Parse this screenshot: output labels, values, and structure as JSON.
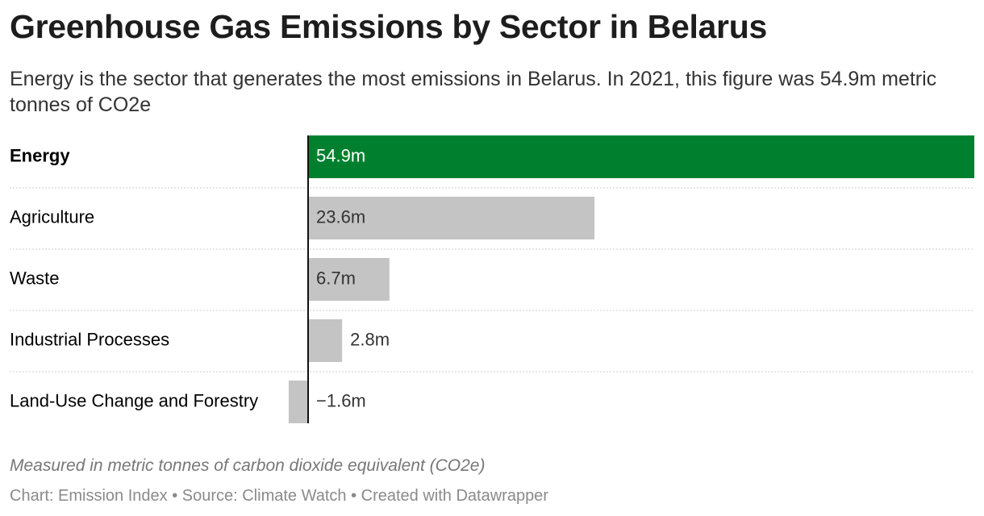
{
  "chart_data": {
    "type": "bar",
    "title": "Greenhouse Gas Emissions by Sector in Belarus",
    "subtitle": "Energy is the sector that generates the most emissions in Belarus. In 2021, this figure was 54.9m metric tonnes of CO2e",
    "categories": [
      "Energy",
      "Agriculture",
      "Waste",
      "Industrial Processes",
      "Land-Use Change and Forestry"
    ],
    "values": [
      54.9,
      23.6,
      6.7,
      2.8,
      -1.6
    ],
    "value_labels": [
      "54.9m",
      "23.6m",
      "6.7m",
      "2.8m",
      "−1.6m"
    ],
    "colors": [
      "#00802f",
      "#c4c4c4",
      "#c4c4c4",
      "#c4c4c4",
      "#c4c4c4"
    ],
    "note": "Measured in metric tonnes of carbon dioxide equivalent (CO2e)",
    "footer": "Chart: Emission Index • Source: Climate Watch • Created with Datawrapper"
  }
}
